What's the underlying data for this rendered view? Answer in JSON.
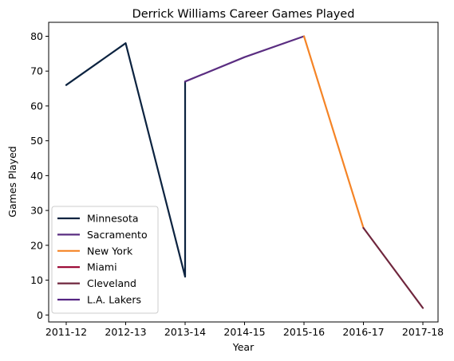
{
  "chart_data": {
    "type": "line",
    "title": "Derrick Williams  Career Games Played",
    "xlabel": "Year",
    "ylabel": "Games Played",
    "categories": [
      "2011-12",
      "2012-13",
      "2013-14",
      "2014-15",
      "2015-16",
      "2016-17",
      "2017-18"
    ],
    "ylim": [
      -2,
      84
    ],
    "yticks": [
      0,
      10,
      20,
      30,
      40,
      50,
      60,
      70,
      80
    ],
    "grid": false,
    "legend_position": "lower-left",
    "series": [
      {
        "name": "Minnesota",
        "color": "#0c2340",
        "points": [
          {
            "x": "2011-12",
            "y": 66
          },
          {
            "x": "2012-13",
            "y": 78
          },
          {
            "x": "2013-14",
            "y": 11
          },
          {
            "x": "2013-14",
            "y": 67
          }
        ]
      },
      {
        "name": "Sacramento",
        "color": "#5a2d81",
        "points": [
          {
            "x": "2013-14",
            "y": 67
          },
          {
            "x": "2014-15",
            "y": 74
          },
          {
            "x": "2015-16",
            "y": 80
          }
        ]
      },
      {
        "name": "New York",
        "color": "#f58426",
        "points": [
          {
            "x": "2015-16",
            "y": 80
          },
          {
            "x": "2016-17",
            "y": 25
          }
        ]
      },
      {
        "name": "Miami",
        "color": "#98002e",
        "points": [
          {
            "x": "2016-17",
            "y": 25
          }
        ]
      },
      {
        "name": "Cleveland",
        "color": "#6f263d",
        "points": [
          {
            "x": "2016-17",
            "y": 25
          },
          {
            "x": "2017-18",
            "y": 2
          }
        ]
      },
      {
        "name": "L.A. Lakers",
        "color": "#552583",
        "points": [
          {
            "x": "2017-18",
            "y": 2
          }
        ]
      }
    ]
  }
}
